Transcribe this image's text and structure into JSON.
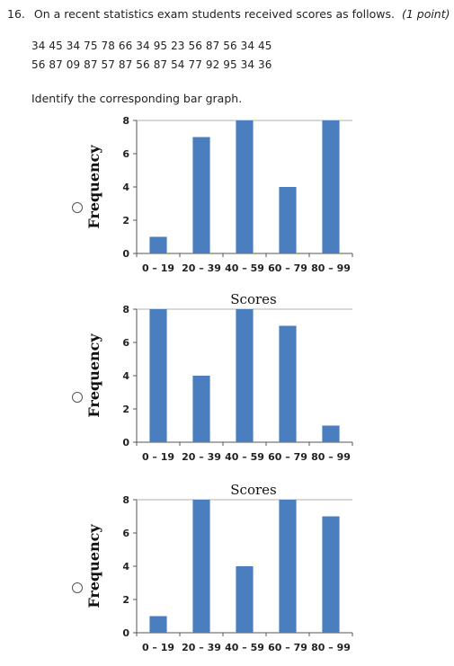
{
  "question": {
    "number": "16.",
    "text": "On a recent statistics exam students received scores as follows.",
    "points": "(1 point)",
    "data_lines": [
      "34 45 34 75 78 66 34 95 23 56 87 56 34 45",
      "56 87 09 87 57 87 56 87 54 77 92 95 34 36"
    ],
    "prompt": "Identify the corresponding bar graph."
  },
  "chart_data": [
    {
      "type": "bar",
      "categories": [
        "0 – 19",
        "20 – 39",
        "40 – 59",
        "60 – 79",
        "80 – 99"
      ],
      "values": [
        1,
        7,
        8,
        4,
        8
      ],
      "title": "",
      "xlabel": "",
      "ylabel": "Frequency",
      "ylim": [
        0,
        8
      ],
      "yticks": [
        "0",
        "2",
        "4",
        "6",
        "8"
      ],
      "color": "#4a7ebf"
    },
    {
      "type": "bar",
      "categories": [
        "0 – 19",
        "20 – 39",
        "40 – 59",
        "60 – 79",
        "80 – 99"
      ],
      "values": [
        8,
        4,
        8,
        7,
        1
      ],
      "title": "Scores",
      "xlabel": "",
      "ylabel": "Frequency",
      "ylim": [
        0,
        8
      ],
      "yticks": [
        "0",
        "2",
        "4",
        "6",
        "8"
      ],
      "color": "#4a7ebf"
    },
    {
      "type": "bar",
      "categories": [
        "0 – 19",
        "20 – 39",
        "40 – 59",
        "60 – 79",
        "80 – 99"
      ],
      "values": [
        1,
        8,
        4,
        8,
        7
      ],
      "title": "Scores",
      "xlabel": "",
      "ylabel": "Frequency",
      "ylim": [
        0,
        8
      ],
      "yticks": [
        "0",
        "2",
        "4",
        "6",
        "8"
      ],
      "color": "#4a7ebf"
    }
  ]
}
